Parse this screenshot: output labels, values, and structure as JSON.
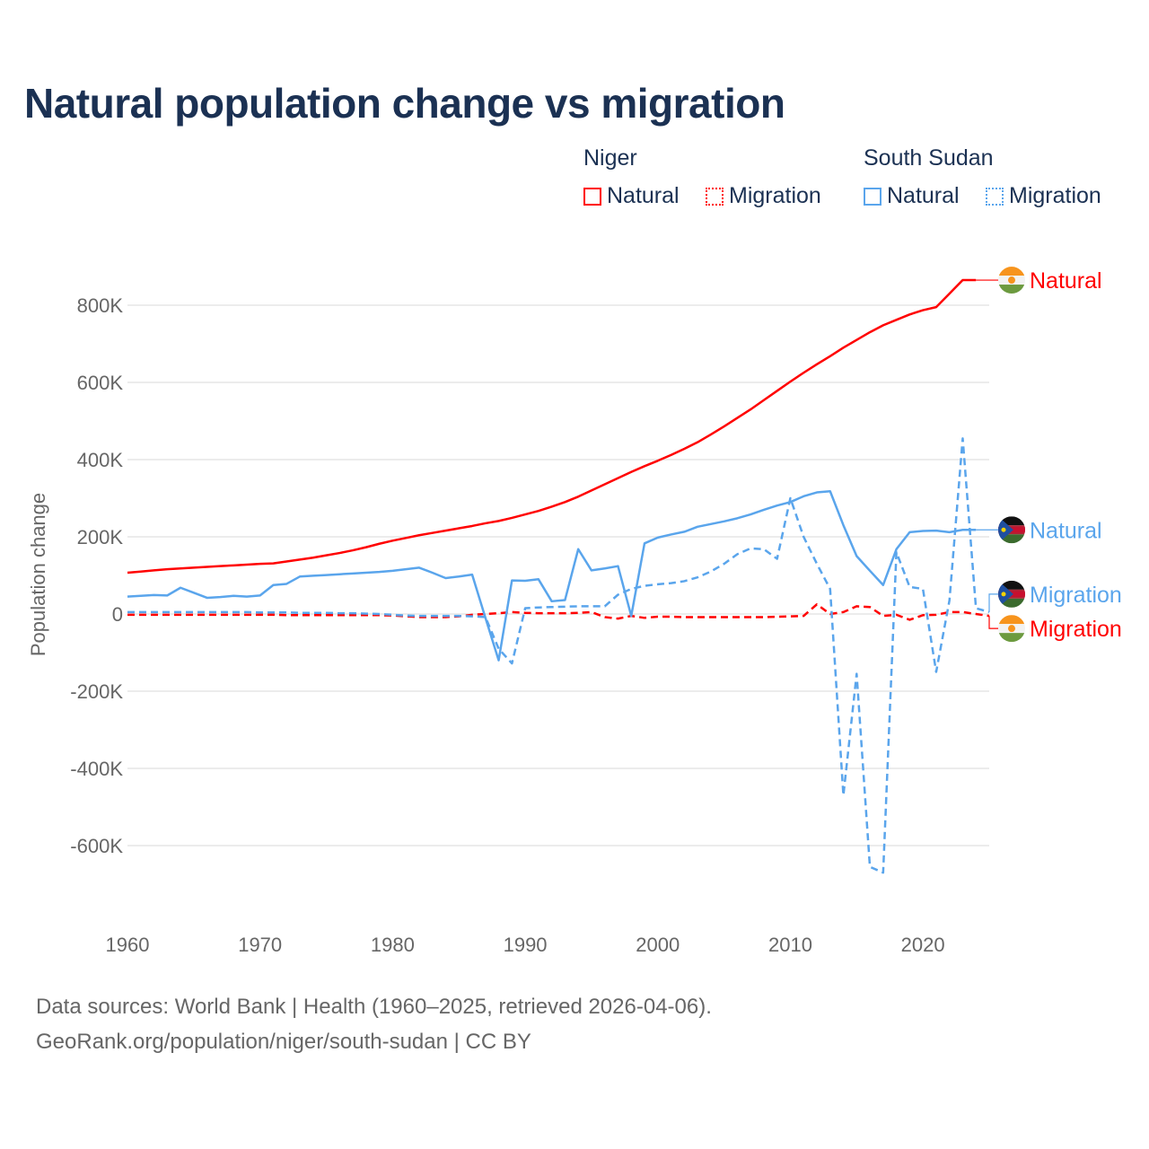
{
  "title": "Natural population change vs migration",
  "legend": {
    "groups": [
      {
        "name": "Niger",
        "items": [
          "Natural",
          "Migration"
        ],
        "color": "#ff0000"
      },
      {
        "name": "South Sudan",
        "items": [
          "Natural",
          "Migration"
        ],
        "color": "#5aa5ec"
      }
    ]
  },
  "footer": {
    "line1": "Data sources: World Bank | Health (1960–2025, retrieved 2026-04-06).",
    "line2": "GeoRank.org/population/niger/south-sudan | CC BY"
  },
  "chart_data": {
    "type": "line",
    "title": "Natural population change vs migration",
    "xlabel": "",
    "ylabel": "Population change",
    "xlim": [
      1960,
      2025
    ],
    "ylim": [
      -700000,
      900000
    ],
    "x_ticks": [
      "1960",
      "1970",
      "1980",
      "1990",
      "2000",
      "2010",
      "2020"
    ],
    "x_tick_values": [
      1960,
      1970,
      1980,
      1990,
      2000,
      2010,
      2020
    ],
    "y_ticks": [
      "800K",
      "600K",
      "400K",
      "200K",
      "0",
      "-200K",
      "-400K",
      "-600K"
    ],
    "y_tick_values": [
      800,
      600,
      400,
      200,
      0,
      -200,
      -400,
      -600
    ],
    "value_unit": "thousands",
    "x_start": 1960,
    "series": [
      {
        "name": "Niger Natural",
        "end_label": "Natural",
        "color": "#ff0000",
        "dash": false,
        "flag": "niger",
        "values": [
          107,
          110,
          113,
          116,
          118,
          120,
          122,
          124,
          126,
          128,
          130,
          131,
          136,
          141,
          146,
          152,
          158,
          165,
          173,
          182,
          190,
          197,
          204,
          210,
          216,
          222,
          228,
          235,
          241,
          249,
          258,
          267,
          278,
          290,
          304,
          320,
          336,
          352,
          368,
          383,
          397,
          412,
          428,
          445,
          465,
          486,
          508,
          530,
          554,
          578,
          602,
          625,
          647,
          668,
          690,
          710,
          730,
          748,
          762,
          776,
          787,
          795,
          830,
          865,
          865
        ]
      },
      {
        "name": "Niger Migration",
        "end_label": "Migration",
        "color": "#ff0000",
        "dash": true,
        "flag": "niger",
        "values": [
          -2,
          -2,
          -2,
          -2,
          -2,
          -2,
          -2,
          -2,
          -2,
          -2,
          -2,
          -2,
          -3,
          -3,
          -3,
          -3,
          -3,
          -3,
          -3,
          -3,
          -4,
          -6,
          -8,
          -8,
          -8,
          -6,
          -2,
          0,
          2,
          5,
          3,
          2,
          2,
          2,
          3,
          5,
          -8,
          -12,
          -5,
          -10,
          -7,
          -7,
          -8,
          -8,
          -8,
          -8,
          -8,
          -8,
          -8,
          -7,
          -6,
          -5,
          25,
          0,
          5,
          20,
          18,
          -5,
          -2,
          -15,
          -3,
          -2,
          5,
          5,
          0,
          -5
        ]
      },
      {
        "name": "South Sudan Natural",
        "end_label": "Natural",
        "color": "#5aa5ec",
        "dash": false,
        "flag": "south-sudan",
        "values": [
          45,
          47,
          49,
          48,
          68,
          55,
          42,
          44,
          47,
          45,
          48,
          75,
          78,
          97,
          99,
          101,
          103,
          105,
          107,
          109,
          112,
          116,
          120,
          107,
          93,
          97,
          102,
          -10,
          -120,
          87,
          86,
          90,
          33,
          36,
          168,
          113,
          118,
          124,
          -5,
          183,
          198,
          206,
          213,
          226,
          233,
          240,
          248,
          258,
          270,
          281,
          290,
          305,
          315,
          318,
          230,
          150,
          112,
          75,
          168,
          212,
          215,
          216,
          212,
          218,
          218
        ]
      },
      {
        "name": "South Sudan Migration",
        "end_label": "Migration",
        "color": "#5aa5ec",
        "dash": true,
        "flag": "south-sudan",
        "values": [
          5,
          5,
          5,
          5,
          5,
          5,
          5,
          5,
          5,
          5,
          4,
          4,
          4,
          3,
          3,
          3,
          2,
          2,
          1,
          0,
          -2,
          -4,
          -5,
          -5,
          -5,
          -5,
          -6,
          -8,
          -90,
          -128,
          15,
          17,
          18,
          19,
          20,
          20,
          20,
          50,
          65,
          73,
          77,
          80,
          85,
          95,
          110,
          130,
          155,
          170,
          168,
          143,
          300,
          200,
          130,
          65,
          -470,
          -155,
          -655,
          -670,
          160,
          70,
          65,
          -150,
          35,
          455,
          15,
          5
        ]
      }
    ],
    "grid": true,
    "legend_position": "top-right"
  }
}
